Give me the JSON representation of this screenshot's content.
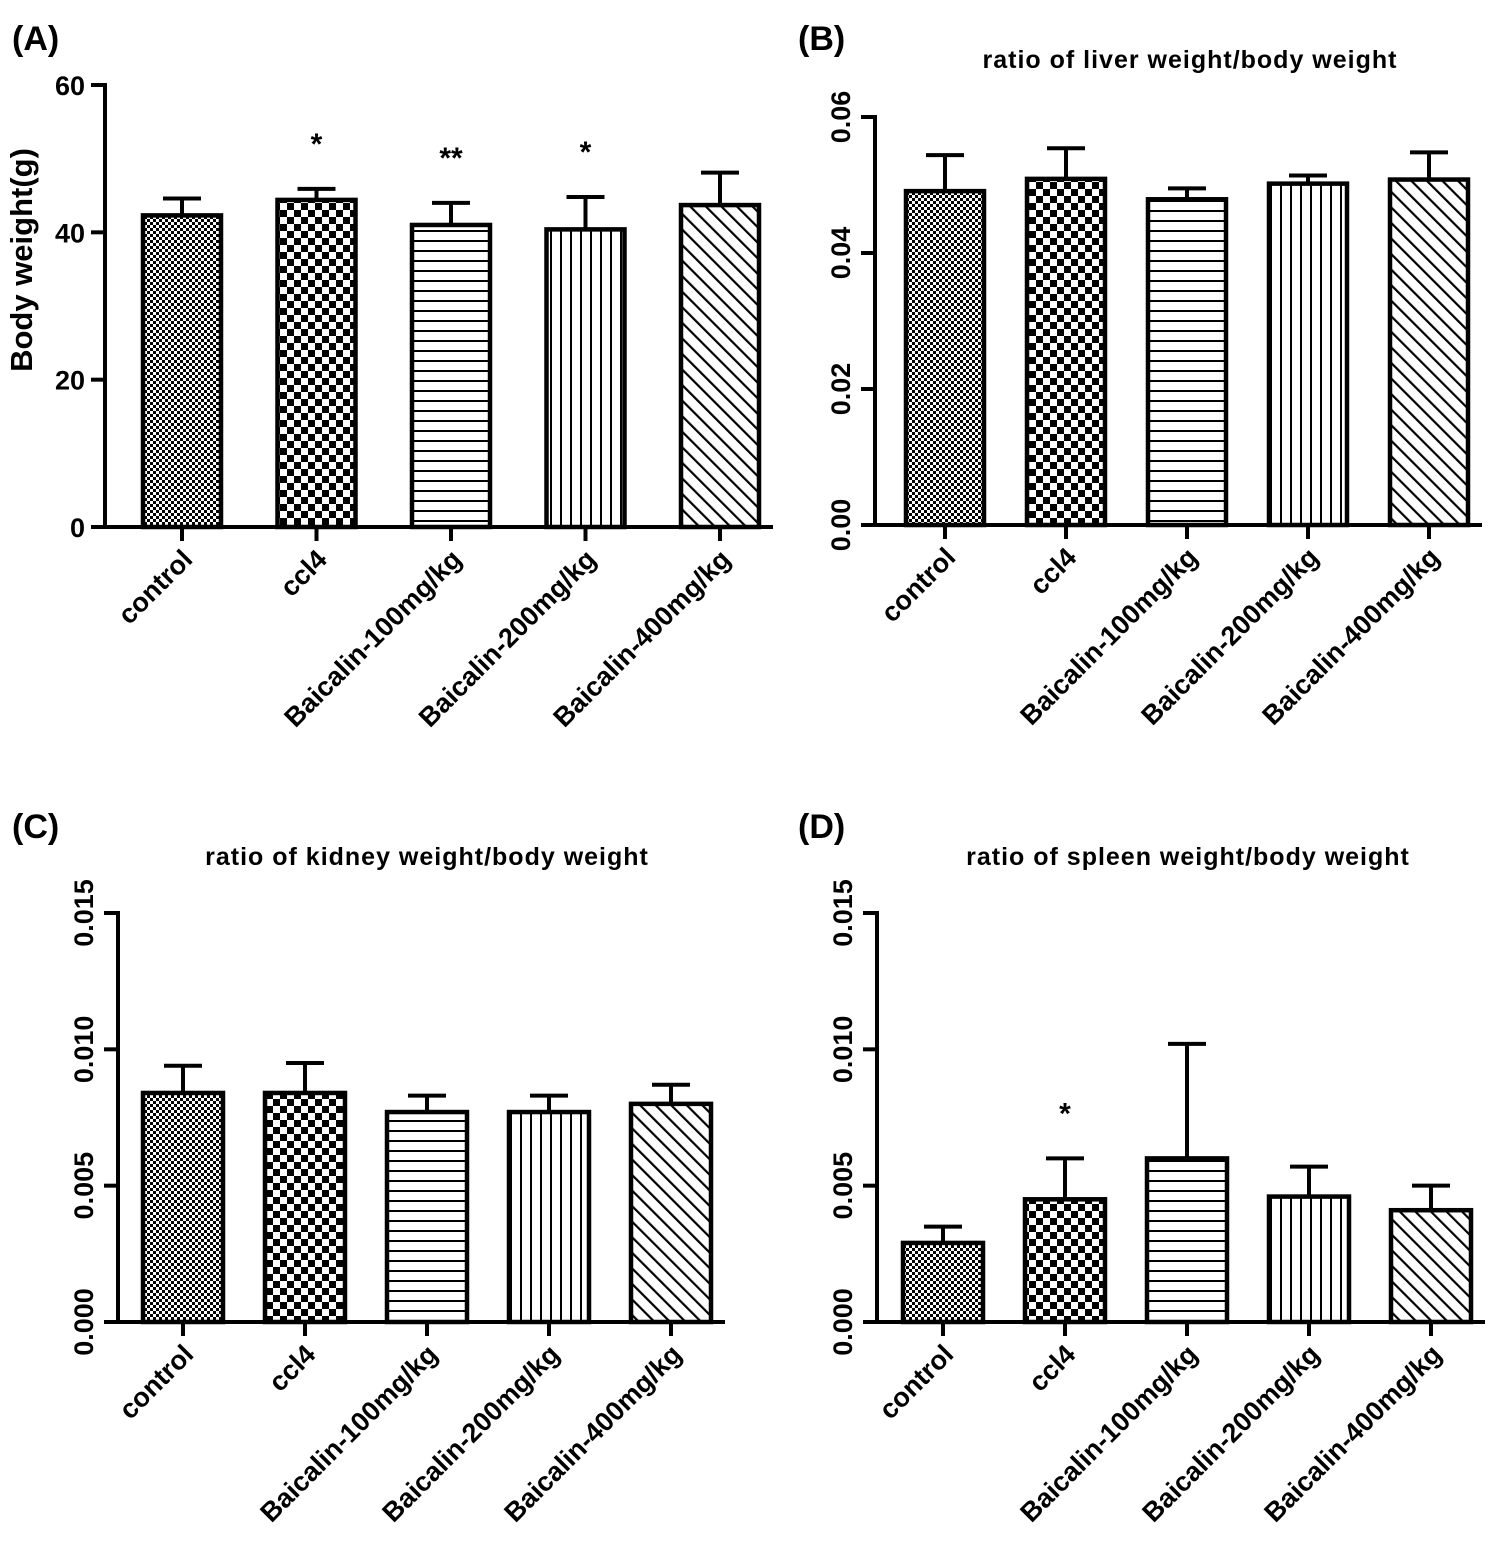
{
  "colors": {
    "ink": "#000000",
    "background": "#ffffff"
  },
  "chart_data": [
    {
      "type": "bar",
      "panel": "(A)",
      "title": "",
      "ylabel": "Body weight(g)",
      "xlabel": "",
      "ylim": [
        0,
        60
      ],
      "yticks": [
        "0",
        "20",
        "40",
        "60"
      ],
      "ytick_values": [
        0,
        20,
        40,
        60
      ],
      "categories": [
        "control",
        "ccl4",
        "Baicalin-100mg/kg",
        "Baicalin-200mg/kg",
        "Baicalin-400mg/kg"
      ],
      "category_subscripts": [
        "",
        "4",
        "",
        "",
        ""
      ],
      "values": [
        42.3,
        44.4,
        41.0,
        40.4,
        43.7
      ],
      "errors": [
        2.3,
        1.5,
        3.0,
        4.4,
        4.4
      ],
      "significance": [
        "",
        "*",
        "**",
        "*",
        ""
      ],
      "patterns": [
        "fine-check",
        "coarse-check",
        "horizontal",
        "vertical",
        "diagonal"
      ],
      "grid": false
    },
    {
      "type": "bar",
      "panel": "(B)",
      "title": "ratio of liver weight/body weight",
      "ylabel": "",
      "xlabel": "",
      "ylim": [
        0,
        0.06
      ],
      "yticks": [
        "0.00",
        "0.02",
        "0.04",
        "0.06"
      ],
      "ytick_values": [
        0,
        0.02,
        0.04,
        0.06
      ],
      "categories": [
        "control",
        "ccl4",
        "Baicalin-100mg/kg",
        "Baicalin-200mg/kg",
        "Baicalin-400mg/kg"
      ],
      "category_subscripts": [
        "",
        "4",
        "",
        "",
        ""
      ],
      "values": [
        0.0491,
        0.0509,
        0.0479,
        0.0502,
        0.0508
      ],
      "errors": [
        0.0053,
        0.0045,
        0.0016,
        0.0012,
        0.004
      ],
      "significance": [
        "",
        "",
        "",
        "",
        ""
      ],
      "patterns": [
        "fine-check",
        "coarse-check",
        "horizontal",
        "vertical",
        "diagonal"
      ],
      "grid": false
    },
    {
      "type": "bar",
      "panel": "(C)",
      "title": "ratio of kidney weight/body weight",
      "ylabel": "",
      "xlabel": "",
      "ylim": [
        0,
        0.015
      ],
      "yticks": [
        "0.000",
        "0.005",
        "0.010",
        "0.015"
      ],
      "ytick_values": [
        0,
        0.005,
        0.01,
        0.015
      ],
      "categories": [
        "control",
        "ccl4",
        "Baicalin-100mg/kg",
        "Baicalin-200mg/kg",
        "Baicalin-400mg/kg"
      ],
      "category_subscripts": [
        "",
        "4",
        "",
        "",
        ""
      ],
      "values": [
        0.0084,
        0.0084,
        0.0077,
        0.0077,
        0.008
      ],
      "errors": [
        0.001,
        0.0011,
        0.0006,
        0.0006,
        0.0007
      ],
      "significance": [
        "",
        "",
        "",
        "",
        ""
      ],
      "patterns": [
        "fine-check",
        "coarse-check",
        "horizontal",
        "vertical",
        "diagonal"
      ],
      "grid": false
    },
    {
      "type": "bar",
      "panel": "(D)",
      "title": "ratio of spleen weight/body weight",
      "ylabel": "",
      "xlabel": "",
      "ylim": [
        0,
        0.015
      ],
      "yticks": [
        "0.000",
        "0.005",
        "0.010",
        "0.015"
      ],
      "ytick_values": [
        0,
        0.005,
        0.01,
        0.015
      ],
      "categories": [
        "control",
        "ccl4",
        "Baicalin-100mg/kg",
        "Baicalin-200mg/kg",
        "Baicalin-400mg/kg"
      ],
      "category_subscripts": [
        "",
        "4",
        "",
        "",
        ""
      ],
      "values": [
        0.0029,
        0.0045,
        0.006,
        0.0046,
        0.0041
      ],
      "errors": [
        0.0006,
        0.0015,
        0.0042,
        0.0011,
        0.0009
      ],
      "significance": [
        "",
        "*",
        "",
        "",
        ""
      ],
      "patterns": [
        "fine-check",
        "coarse-check",
        "horizontal",
        "vertical",
        "diagonal"
      ],
      "grid": false
    }
  ]
}
